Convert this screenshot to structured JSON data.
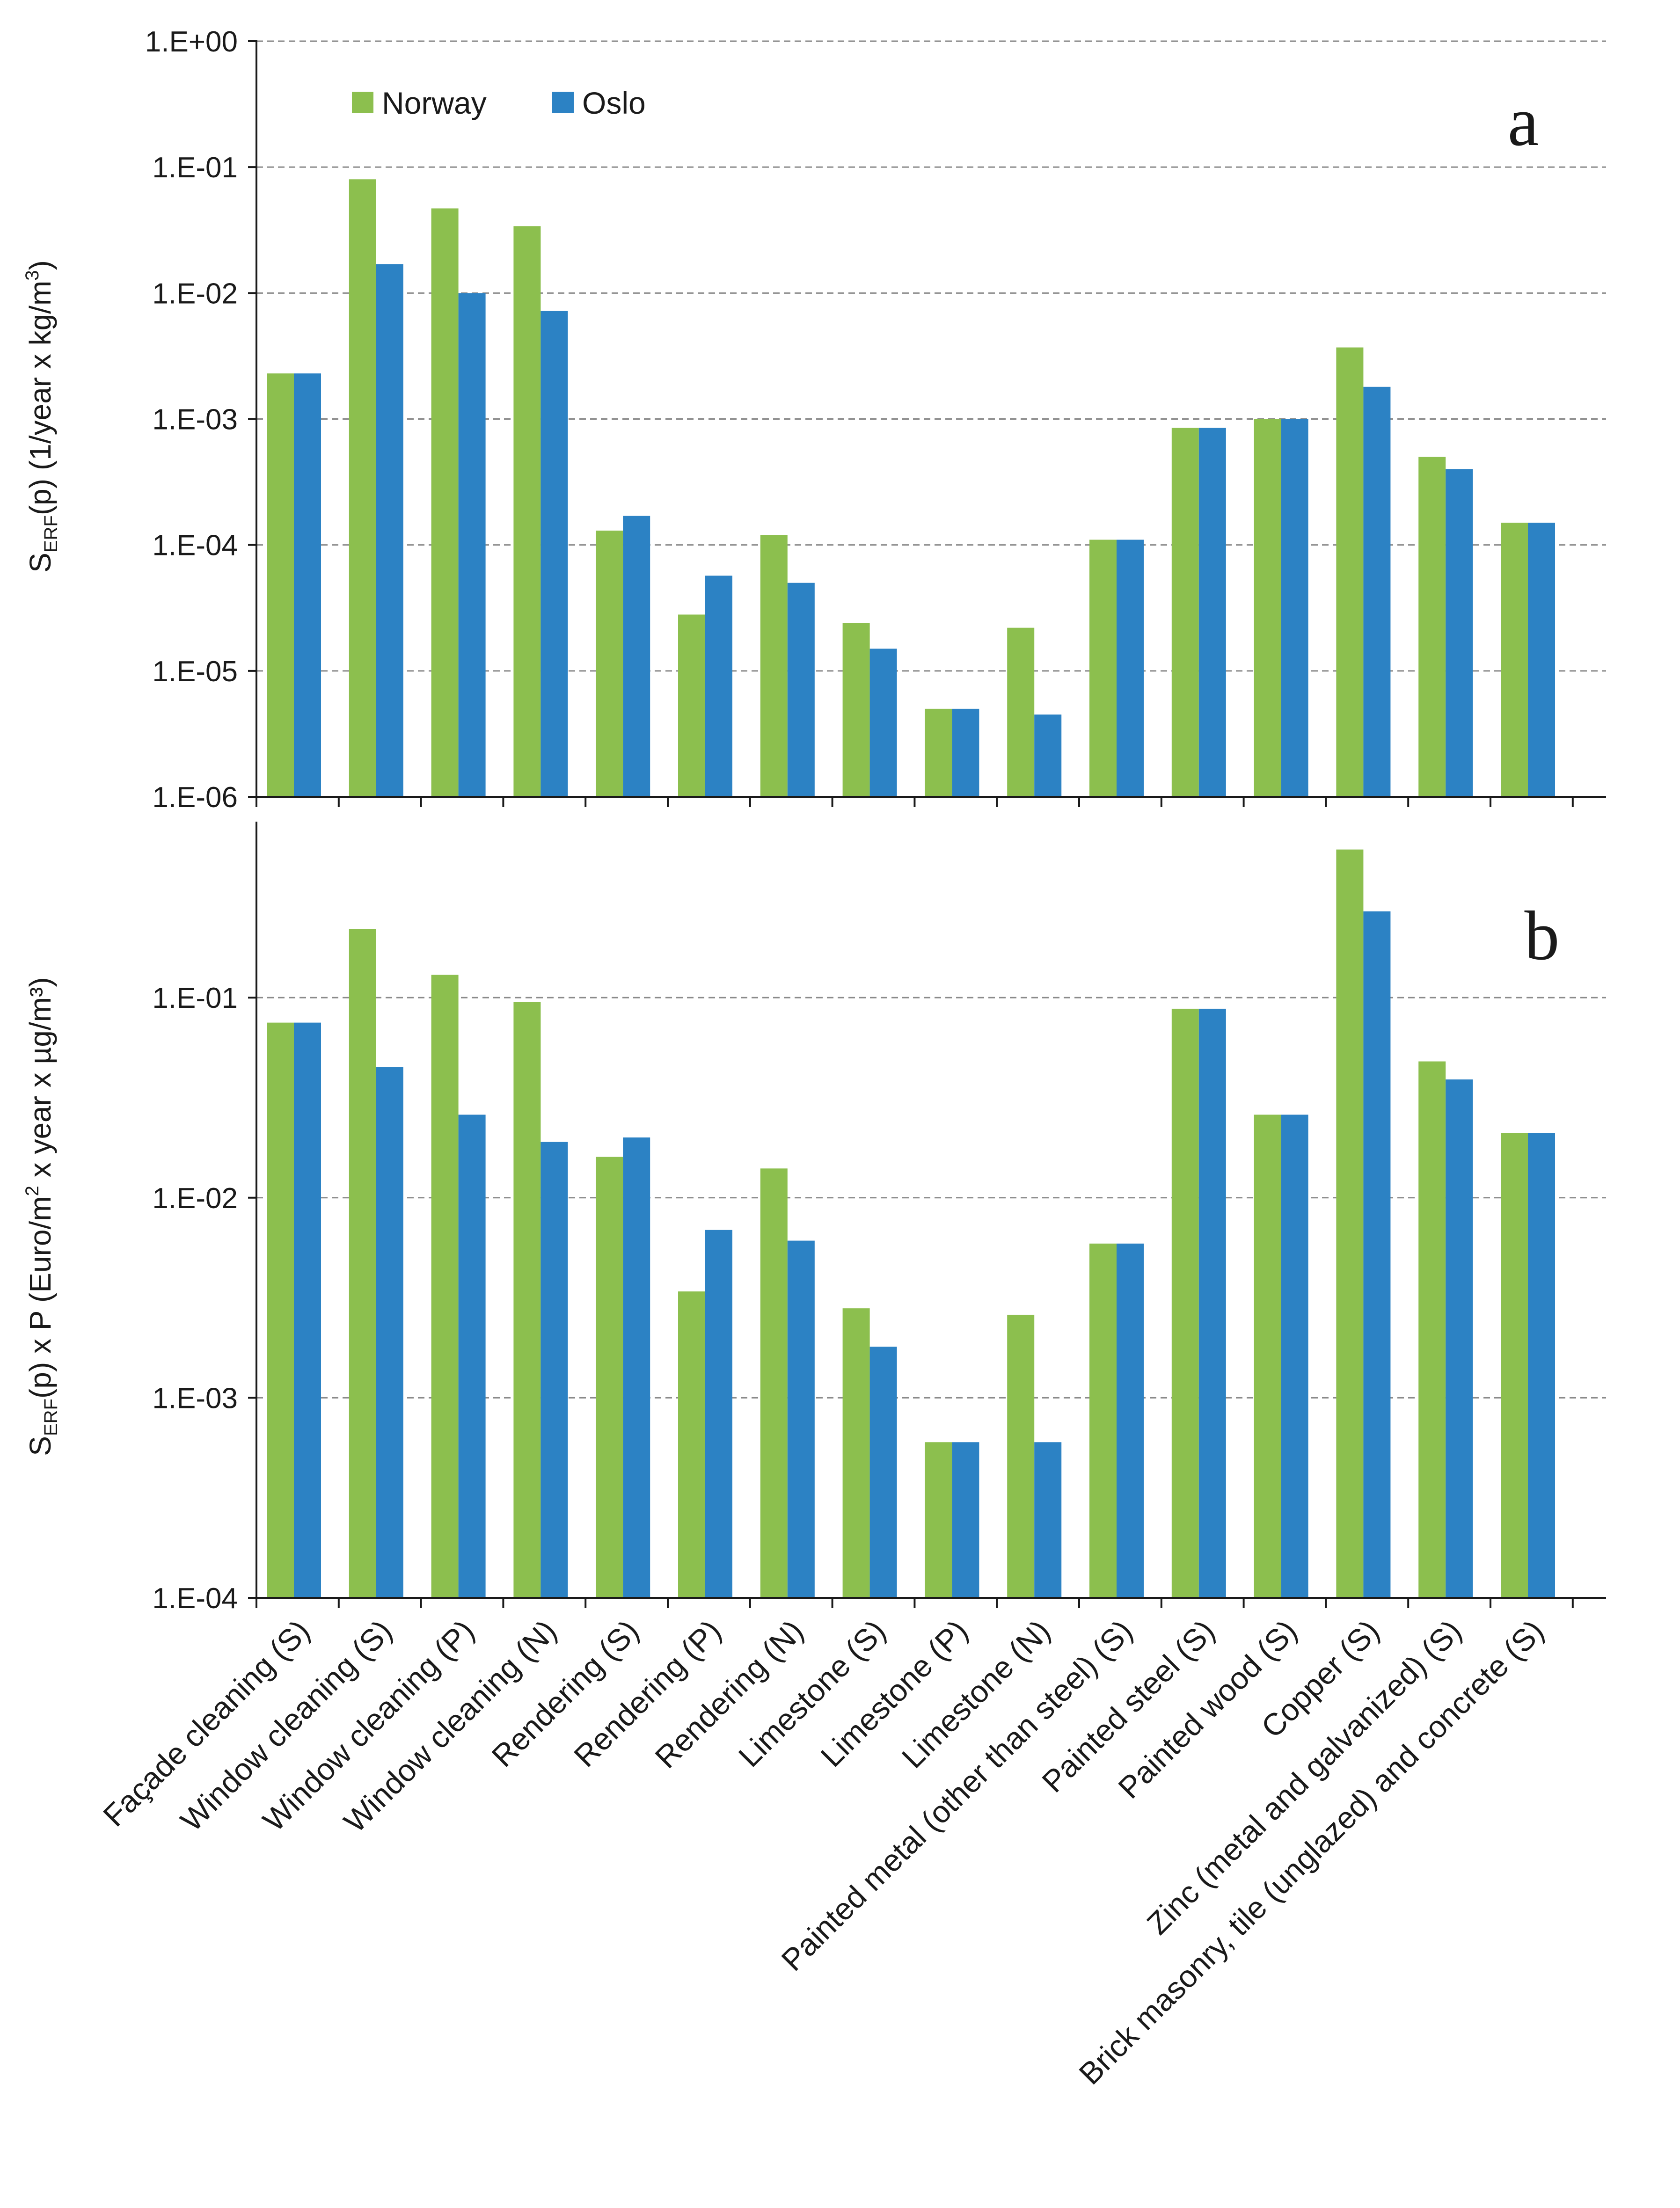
{
  "colors": {
    "norway": "#8cbf4e",
    "oslo": "#2c82c4",
    "grid": "#8a8a8a",
    "axis": "#1a1a1a"
  },
  "chart_data": [
    {
      "type": "bar",
      "panel": "a",
      "scale": "log",
      "ylim": [
        1e-06,
        1
      ],
      "yticks": [
        1e-06,
        1e-05,
        0.0001,
        0.001,
        0.01,
        0.1,
        1
      ],
      "ytick_labels": [
        "1.E-06",
        "1.E-05",
        "1.E-04",
        "1.E-03",
        "1.E-02",
        "1.E-01",
        "1.E+00"
      ],
      "ylabel": {
        "main": "S",
        "sub": "ERF",
        "rest": "(p) (1/year x kg/m",
        "sup": "3",
        "end": ")"
      },
      "grid": true,
      "legend": {
        "placement": "top-left",
        "entries": [
          "Norway",
          "Oslo"
        ]
      },
      "categories": [
        "Façade cleaning (S)",
        "Window cleaning  (S)",
        "Window cleaning  (P)",
        "Window cleaning  (N)",
        "Rendering (S)",
        "Rendering (P)",
        "Rendering (N)",
        "Limestone (S)",
        "Limestone (P)",
        "Limestone (N)",
        "Painted metal (other than steel) (S)",
        "Painted steel (S)",
        "Painted wood (S)",
        "Copper (S)",
        "Zinc (metal and galvanized) (S)",
        "Brick masonry, tile (unglazed) and concrete (S)"
      ],
      "series": [
        {
          "name": "Norway",
          "values": [
            0.0023,
            0.08,
            0.047,
            0.034,
            0.00013,
            2.8e-05,
            0.00012,
            2.4e-05,
            5e-06,
            2.2e-05,
            0.00011,
            0.00085,
            0.001,
            0.0037,
            0.0005,
            0.00015
          ]
        },
        {
          "name": "Oslo",
          "values": [
            0.0023,
            0.017,
            0.01,
            0.0072,
            0.00017,
            5.7e-05,
            5e-05,
            1.5e-05,
            5e-06,
            4.5e-06,
            0.00011,
            0.00085,
            0.001,
            0.0018,
            0.0004,
            0.00015
          ]
        }
      ]
    },
    {
      "type": "bar",
      "panel": "b",
      "scale": "log",
      "ylim": [
        0.0001,
        0.75
      ],
      "yticks": [
        0.0001,
        0.001,
        0.01,
        0.1
      ],
      "ytick_labels": [
        "1.E-04",
        "1.E-03",
        "1.E-02",
        "1.E-01"
      ],
      "ylabel": {
        "main": "S",
        "sub": "ERF",
        "rest": "(p) x P (Euro/m",
        "sup": "2",
        "end": " x year x µg/m³)"
      },
      "grid": true,
      "categories": [
        "Façade cleaning (S)",
        "Window cleaning  (S)",
        "Window cleaning  (P)",
        "Window cleaning  (N)",
        "Rendering (S)",
        "Rendering (P)",
        "Rendering (N)",
        "Limestone (S)",
        "Limestone (P)",
        "Limestone (N)",
        "Painted metal (other than steel) (S)",
        "Painted steel (S)",
        "Painted wood (S)",
        "Copper (S)",
        "Zinc (metal and galvanized) (S)",
        "Brick masonry, tile (unglazed) and concrete (S)"
      ],
      "series": [
        {
          "name": "Norway",
          "values": [
            0.075,
            0.22,
            0.13,
            0.095,
            0.016,
            0.0034,
            0.014,
            0.0028,
            0.0006,
            0.0026,
            0.0059,
            0.088,
            0.026,
            0.55,
            0.048,
            0.021
          ]
        },
        {
          "name": "Oslo",
          "values": [
            0.075,
            0.045,
            0.026,
            0.019,
            0.02,
            0.0069,
            0.0061,
            0.0018,
            0.0006,
            0.0006,
            0.0059,
            0.088,
            0.026,
            0.27,
            0.039,
            0.021
          ]
        }
      ]
    }
  ]
}
